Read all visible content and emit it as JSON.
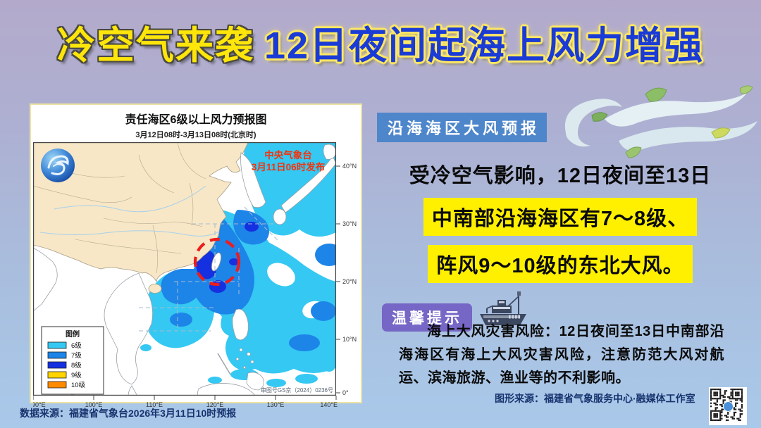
{
  "title": {
    "highlight": "冷空气来袭",
    "main": "12日夜间起海上风力增强"
  },
  "map_card": {
    "title": "责任海区6级以上风力预报图",
    "subtitle": "3月12日08时-3月13日08时(北京时)",
    "issuer_line1": "中央气象台",
    "issuer_line2": "3月11日06时发布",
    "watermark": "审图号GS京（2024）0236号",
    "legend": {
      "title": "图例",
      "items": [
        {
          "label": "6级",
          "color": "#35c8f2"
        },
        {
          "label": "7级",
          "color": "#1d84e8"
        },
        {
          "label": "8级",
          "color": "#1430e0"
        },
        {
          "label": "9级",
          "color": "#ffd400"
        },
        {
          "label": "10级",
          "color": "#ff8a00"
        }
      ]
    },
    "lon_labels": [
      "90°E",
      "100°E",
      "110°E",
      "120°E",
      "130°E",
      "140°E"
    ],
    "lat_labels": [
      "40°N",
      "30°N",
      "20°N",
      "10°N",
      "0°"
    ]
  },
  "forecast": {
    "badge": "沿海海区大风预报",
    "intro": "受冷空气影响，12日夜间至13日",
    "highlight_line1": "中南部沿海海区有7～8级、",
    "highlight_line2": "阵风9～10级的东北大风。"
  },
  "tips": {
    "badge": "温馨提示",
    "body": "海上大风灾害风险：12日夜间至13日中南部沿海海区有海上大风灾害风险，注意防范大风对航运、滨海旅游、渔业等的不利影响。"
  },
  "footer": {
    "data_source": "数据来源：福建省气象台2026年3月11日10时预报",
    "graphic_source": "图形来源：福建省气象服务中心·融媒体工作室"
  },
  "colors": {
    "title_yellow": "#ffe60a",
    "title_blue": "#1a3bd6",
    "badge_blue": "#4e86cb",
    "badge_purple": "#7666c6",
    "highlight_bg": "#fff000",
    "land_beige": "#f7e7c6",
    "alert_red": "#f5330c"
  }
}
